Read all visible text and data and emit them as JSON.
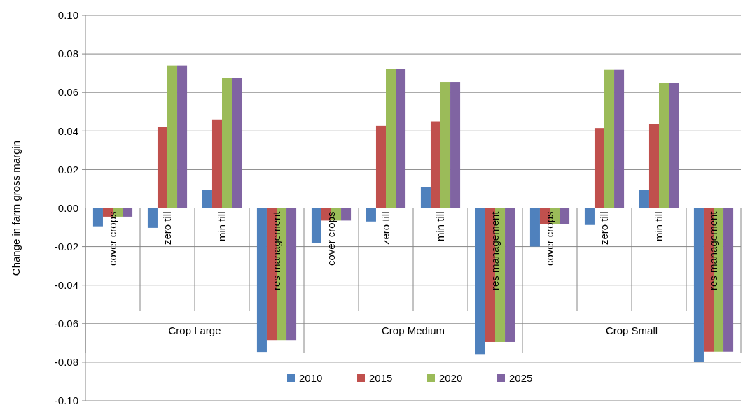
{
  "chart_data": {
    "type": "bar",
    "ylabel": "Change in farm gross margin",
    "categories": [
      "cover crops",
      "zero till",
      "min till",
      "res management",
      "cover crops",
      "zero till",
      "min till",
      "res management",
      "cover crops",
      "zero till",
      "min till",
      "res management"
    ],
    "series": [
      {
        "name": "2010",
        "color": "#4f81bd",
        "values": [
          -0.0095,
          -0.0103,
          0.0093,
          -0.075,
          -0.018,
          -0.007,
          0.0108,
          -0.0758,
          -0.02,
          -0.0088,
          0.0093,
          -0.08
        ]
      },
      {
        "name": "2015",
        "color": "#c0504d",
        "values": [
          -0.0045,
          0.042,
          0.046,
          -0.0685,
          -0.0065,
          0.0427,
          0.045,
          -0.0695,
          -0.0085,
          0.0415,
          0.0437,
          -0.0745
        ]
      },
      {
        "name": "2020",
        "color": "#9bbb59",
        "values": [
          -0.0045,
          0.074,
          0.0675,
          -0.0685,
          -0.0065,
          0.0723,
          0.0655,
          -0.0695,
          -0.0085,
          0.0718,
          0.065,
          -0.0745
        ]
      },
      {
        "name": "2025",
        "color": "#8064a2",
        "values": [
          -0.0045,
          0.074,
          0.0675,
          -0.0685,
          -0.0065,
          0.0723,
          0.0655,
          -0.0695,
          -0.0085,
          0.0718,
          0.065,
          -0.0745
        ]
      }
    ],
    "annotations": [
      "Crop Large",
      "Crop Medium",
      "Crop Small"
    ],
    "ylim": [
      -0.1,
      0.1
    ],
    "yticks": [
      {
        "value": -0.1,
        "label": "-0.10"
      },
      {
        "value": -0.08,
        "label": "-0.08"
      },
      {
        "value": -0.06,
        "label": "-0.06"
      },
      {
        "value": -0.04,
        "label": "-0.04"
      },
      {
        "value": -0.02,
        "label": "-0.02"
      },
      {
        "value": 0,
        "label": "0.00"
      },
      {
        "value": 0.02,
        "label": "0.02"
      },
      {
        "value": 0.04,
        "label": "0.04"
      },
      {
        "value": 0.06,
        "label": "0.06"
      },
      {
        "value": 0.08,
        "label": "0.08"
      },
      {
        "value": 0.1,
        "label": "0.10"
      }
    ],
    "grid": "y",
    "legend": "bottom"
  }
}
